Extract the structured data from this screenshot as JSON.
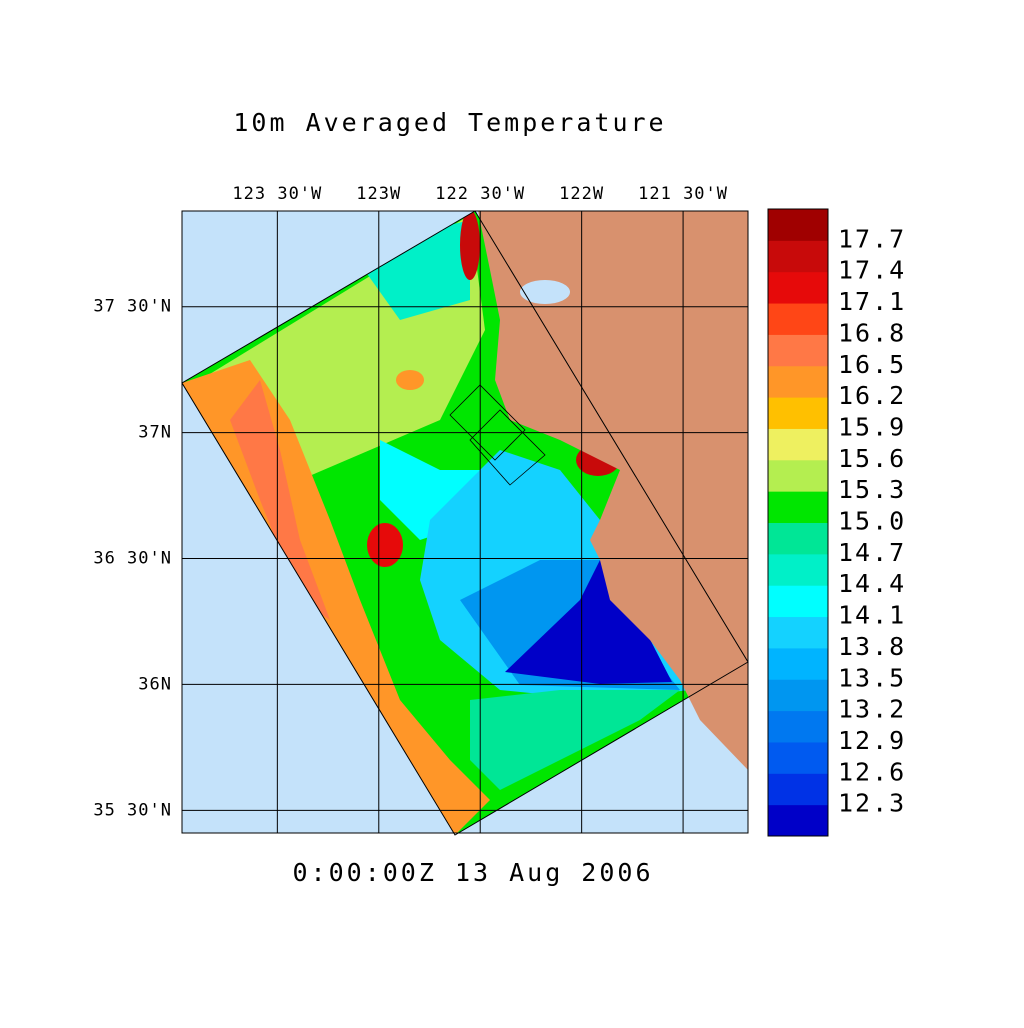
{
  "title": "10m Averaged Temperature",
  "timestamp": "0:00:00Z  13 Aug 2006",
  "map": {
    "xlim": [
      -123.97,
      -121.18
    ],
    "ylim": [
      35.41,
      37.88
    ],
    "lon_ticks": [
      {
        "value": -123.5,
        "label": "123 30'W"
      },
      {
        "value": -123,
        "label": "123W"
      },
      {
        "value": -122.5,
        "label": "122 30'W"
      },
      {
        "value": -122,
        "label": "122W"
      },
      {
        "value": -121.5,
        "label": "121 30'W"
      }
    ],
    "lat_ticks": [
      {
        "value": 35.5,
        "label": "35 30'N"
      },
      {
        "value": 36,
        "label": "36N"
      },
      {
        "value": 36.5,
        "label": "36 30'N"
      },
      {
        "value": 37,
        "label": "37N"
      },
      {
        "value": 37.5,
        "label": "37 30'N"
      }
    ]
  },
  "colorbar": {
    "levels": [
      12.3,
      12.6,
      12.9,
      13.2,
      13.5,
      13.8,
      14.1,
      14.4,
      14.7,
      15.0,
      15.3,
      15.6,
      15.9,
      16.2,
      16.5,
      16.8,
      17.1,
      17.4,
      17.7
    ],
    "level_labels": [
      "12.3",
      "12.6",
      "12.9",
      "13.2",
      "13.5",
      "13.8",
      "14.1",
      "14.4",
      "14.7",
      "15.0",
      "15.3",
      "15.6",
      "15.9",
      "16.2",
      "16.5",
      "16.8",
      "17.1",
      "17.4",
      "17.7"
    ],
    "colors": [
      "#0000c8",
      "#0032e6",
      "#005af0",
      "#0078f0",
      "#0096f0",
      "#00b4ff",
      "#14d2ff",
      "#00ffff",
      "#00f0c8",
      "#00e696",
      "#00e600",
      "#b4ee50",
      "#eef060",
      "#ffc000",
      "#ff9628",
      "#ff7846",
      "#ff4616",
      "#e60a0a",
      "#c80a0a",
      "#a00000"
    ]
  }
}
